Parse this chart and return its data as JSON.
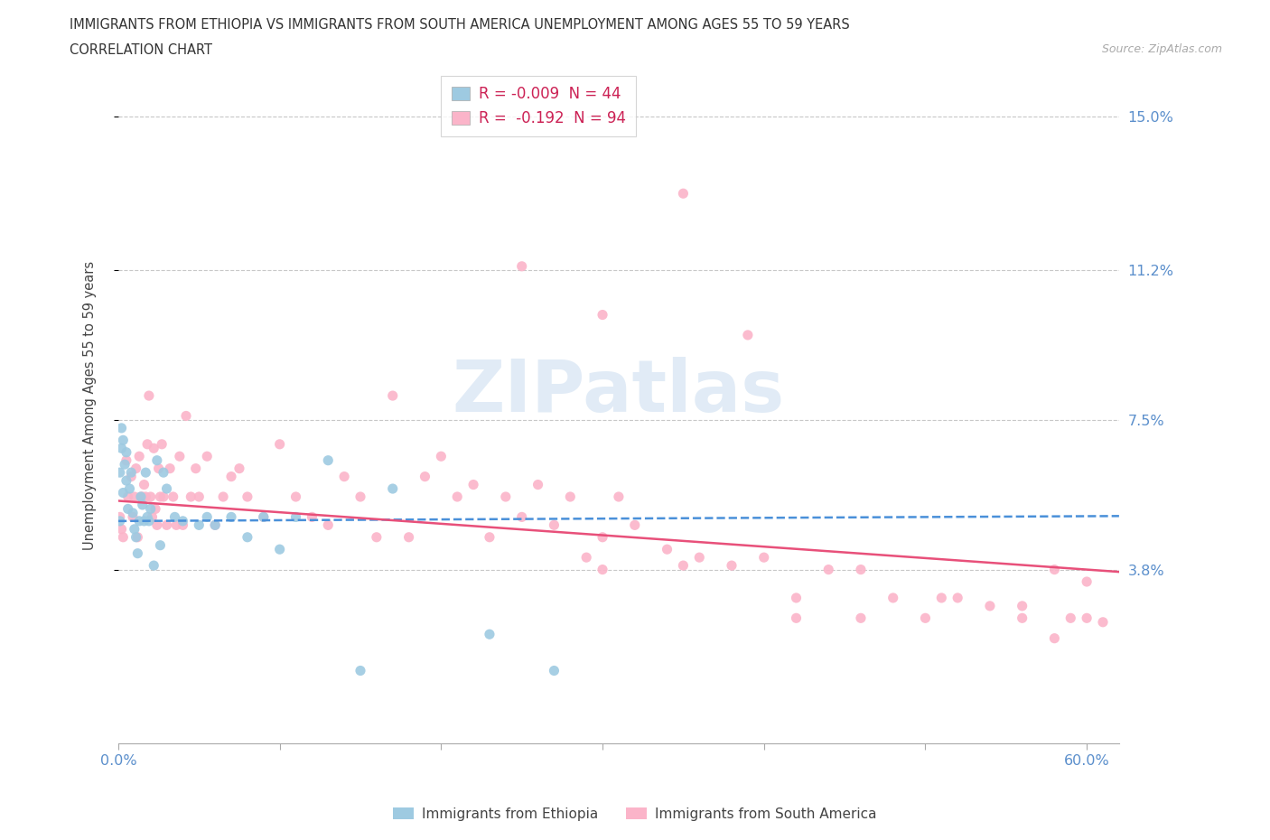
{
  "title_line1": "IMMIGRANTS FROM ETHIOPIA VS IMMIGRANTS FROM SOUTH AMERICA UNEMPLOYMENT AMONG AGES 55 TO 59 YEARS",
  "title_line2": "CORRELATION CHART",
  "source_text": "Source: ZipAtlas.com",
  "ylabel": "Unemployment Among Ages 55 to 59 years",
  "xlim": [
    0.0,
    0.62
  ],
  "ylim": [
    -0.005,
    0.162
  ],
  "ytick_vals": [
    0.038,
    0.075,
    0.112,
    0.15
  ],
  "ytick_labels": [
    "3.8%",
    "7.5%",
    "11.2%",
    "15.0%"
  ],
  "xtick_vals": [
    0.0,
    0.1,
    0.2,
    0.3,
    0.4,
    0.5,
    0.6
  ],
  "xtick_labels": [
    "0.0%",
    "",
    "",
    "",
    "",
    "",
    "60.0%"
  ],
  "legend_r1_label": "R = -0.009  N = 44",
  "legend_r2_label": "R =  -0.192  N = 94",
  "color_blue": "#9ecae1",
  "color_pink": "#fbb4c9",
  "color_blue_line": "#4a90d9",
  "color_pink_line": "#e8507a",
  "color_tick": "#5b8fcc",
  "watermark_text": "ZIPatlas",
  "eth_x": [
    0.001,
    0.001,
    0.002,
    0.002,
    0.003,
    0.003,
    0.004,
    0.005,
    0.005,
    0.006,
    0.007,
    0.008,
    0.009,
    0.01,
    0.011,
    0.012,
    0.013,
    0.014,
    0.015,
    0.016,
    0.017,
    0.018,
    0.019,
    0.02,
    0.022,
    0.024,
    0.026,
    0.028,
    0.03,
    0.035,
    0.04,
    0.05,
    0.055,
    0.06,
    0.07,
    0.08,
    0.09,
    0.1,
    0.11,
    0.13,
    0.15,
    0.17,
    0.23,
    0.27
  ],
  "eth_y": [
    0.05,
    0.062,
    0.068,
    0.073,
    0.057,
    0.07,
    0.064,
    0.06,
    0.067,
    0.053,
    0.058,
    0.062,
    0.052,
    0.048,
    0.046,
    0.042,
    0.05,
    0.056,
    0.054,
    0.05,
    0.062,
    0.051,
    0.05,
    0.053,
    0.039,
    0.065,
    0.044,
    0.062,
    0.058,
    0.051,
    0.05,
    0.049,
    0.051,
    0.049,
    0.051,
    0.046,
    0.051,
    0.043,
    0.051,
    0.065,
    0.013,
    0.058,
    0.022,
    0.013
  ],
  "sa_x": [
    0.001,
    0.002,
    0.003,
    0.005,
    0.006,
    0.008,
    0.009,
    0.01,
    0.011,
    0.012,
    0.013,
    0.014,
    0.015,
    0.016,
    0.017,
    0.018,
    0.019,
    0.02,
    0.021,
    0.022,
    0.023,
    0.024,
    0.025,
    0.026,
    0.027,
    0.028,
    0.03,
    0.032,
    0.034,
    0.036,
    0.038,
    0.04,
    0.042,
    0.045,
    0.048,
    0.05,
    0.055,
    0.06,
    0.065,
    0.07,
    0.075,
    0.08,
    0.09,
    0.1,
    0.11,
    0.12,
    0.13,
    0.14,
    0.15,
    0.16,
    0.17,
    0.18,
    0.19,
    0.2,
    0.21,
    0.22,
    0.23,
    0.24,
    0.25,
    0.26,
    0.27,
    0.28,
    0.29,
    0.3,
    0.31,
    0.32,
    0.34,
    0.36,
    0.38,
    0.4,
    0.42,
    0.44,
    0.46,
    0.48,
    0.5,
    0.52,
    0.54,
    0.56,
    0.58,
    0.6,
    0.25,
    0.3,
    0.35,
    0.39,
    0.3,
    0.35,
    0.42,
    0.46,
    0.51,
    0.56,
    0.59,
    0.58,
    0.6,
    0.61
  ],
  "sa_y": [
    0.051,
    0.048,
    0.046,
    0.065,
    0.056,
    0.061,
    0.051,
    0.056,
    0.063,
    0.046,
    0.066,
    0.056,
    0.056,
    0.059,
    0.056,
    0.069,
    0.081,
    0.056,
    0.051,
    0.068,
    0.053,
    0.049,
    0.063,
    0.056,
    0.069,
    0.056,
    0.049,
    0.063,
    0.056,
    0.049,
    0.066,
    0.049,
    0.076,
    0.056,
    0.063,
    0.056,
    0.066,
    0.049,
    0.056,
    0.061,
    0.063,
    0.056,
    0.051,
    0.069,
    0.056,
    0.051,
    0.049,
    0.061,
    0.056,
    0.046,
    0.081,
    0.046,
    0.061,
    0.066,
    0.056,
    0.059,
    0.046,
    0.056,
    0.051,
    0.059,
    0.049,
    0.056,
    0.041,
    0.046,
    0.056,
    0.049,
    0.043,
    0.041,
    0.039,
    0.041,
    0.026,
    0.038,
    0.038,
    0.031,
    0.026,
    0.031,
    0.029,
    0.026,
    0.021,
    0.026,
    0.113,
    0.101,
    0.131,
    0.096,
    0.038,
    0.039,
    0.031,
    0.026,
    0.031,
    0.029,
    0.026,
    0.038,
    0.035,
    0.025
  ]
}
